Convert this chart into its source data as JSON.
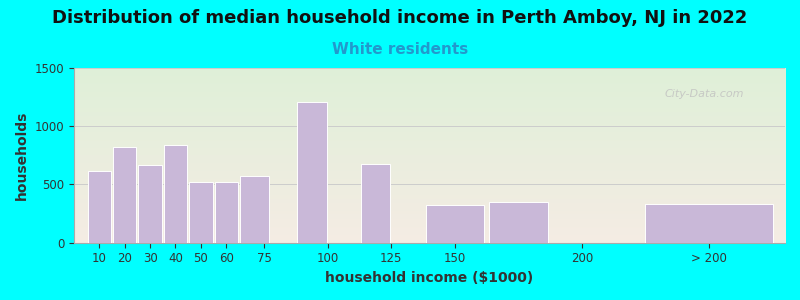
{
  "title": "Distribution of median household income in Perth Amboy, NJ in 2022",
  "subtitle": "White residents",
  "xlabel": "household income ($1000)",
  "ylabel": "households",
  "background_color": "#00FFFF",
  "plot_bg_top": "#dff0d8",
  "plot_bg_bottom": "#f5ece4",
  "bar_color": "#C9B8D8",
  "bar_edge_color": "#ffffff",
  "categories": [
    "10",
    "20",
    "30",
    "40",
    "50",
    "60",
    "75",
    "100",
    "125",
    "150",
    "200",
    "> 200"
  ],
  "bar_lefts": [
    5,
    15,
    25,
    35,
    45,
    55,
    65,
    87.5,
    112.5,
    137.5,
    162.5,
    222.5
  ],
  "bar_widths": [
    10,
    10,
    10,
    10,
    10,
    10,
    12.5,
    12.5,
    12.5,
    25,
    25,
    55
  ],
  "values": [
    620,
    820,
    670,
    840,
    520,
    525,
    570,
    1210,
    680,
    320,
    350,
    330
  ],
  "xlim": [
    0,
    280
  ],
  "ylim": [
    0,
    1500
  ],
  "yticks": [
    0,
    500,
    1000,
    1500
  ],
  "xtick_positions": [
    10,
    20,
    30,
    40,
    50,
    60,
    75,
    100,
    125,
    150,
    200,
    250
  ],
  "xtick_labels": [
    "10",
    "20",
    "30",
    "40",
    "50",
    "60",
    "75",
    "100",
    "125",
    "150",
    "200",
    "> 200"
  ],
  "title_fontsize": 13,
  "subtitle_fontsize": 11,
  "subtitle_color": "#2299CC",
  "axis_label_fontsize": 10,
  "tick_fontsize": 8.5,
  "watermark_text": "City-Data.com",
  "grid_color": "#cccccc"
}
